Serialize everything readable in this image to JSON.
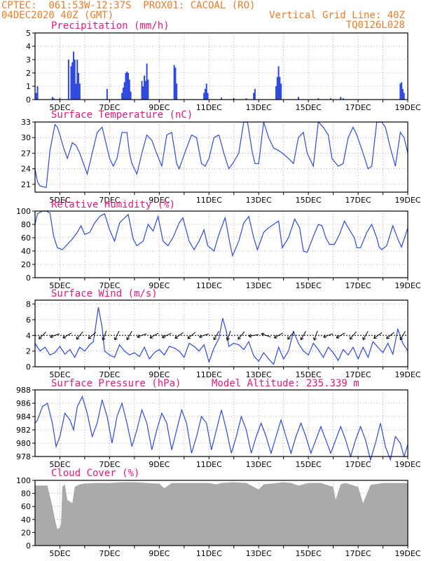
{
  "header": {
    "line1": "CPTEC:  061:53W-12:37S  PROX01: CACOAL (RO)",
    "line2": "04DEC2020 40Z (GMT)",
    "grid_note": "Vertical Grid Line: 40Z",
    "code": "TQ0126L028",
    "color": "#ee7b26"
  },
  "colors": {
    "title": "#e8177b",
    "series": "#2f49e0",
    "cloud": "#aaaaaa",
    "grid": "#9a9a9a"
  },
  "x_axis": {
    "labels": [
      "5DEC",
      "7DEC",
      "9DEC",
      "11DEC",
      "13DEC",
      "15DEC",
      "17DEC",
      "19DEC"
    ],
    "range_days": [
      4.0,
      19.0
    ]
  },
  "chart_data": [
    {
      "type": "bar",
      "title": "Precipitation (mm/h)",
      "ylim": [
        0,
        5
      ],
      "yticks": [
        0,
        1,
        2,
        3,
        4,
        5
      ],
      "bars": [
        [
          4.05,
          0.5
        ],
        [
          4.1,
          1.0
        ],
        [
          4.7,
          0.2
        ],
        [
          4.75,
          0.1
        ],
        [
          5.0,
          0.1
        ],
        [
          5.35,
          3.0
        ],
        [
          5.45,
          2.5
        ],
        [
          5.5,
          2.8
        ],
        [
          5.55,
          3.6
        ],
        [
          5.6,
          3.0
        ],
        [
          5.65,
          1.2
        ],
        [
          5.7,
          3.0
        ],
        [
          5.75,
          2.0
        ],
        [
          5.8,
          1.2
        ],
        [
          6.9,
          0.8
        ],
        [
          7.5,
          0.5
        ],
        [
          7.55,
          0.9
        ],
        [
          7.6,
          1.3
        ],
        [
          7.65,
          2.0
        ],
        [
          7.7,
          2.1
        ],
        [
          7.75,
          2.0
        ],
        [
          7.8,
          1.5
        ],
        [
          7.85,
          0.6
        ],
        [
          8.3,
          1.4
        ],
        [
          8.35,
          1.0
        ],
        [
          8.4,
          1.8
        ],
        [
          8.45,
          1.4
        ],
        [
          8.5,
          2.7
        ],
        [
          8.55,
          1.5
        ],
        [
          9.6,
          2.6
        ],
        [
          9.65,
          2.4
        ],
        [
          9.7,
          1.2
        ],
        [
          10.8,
          0.5
        ],
        [
          10.85,
          0.8
        ],
        [
          10.9,
          1.2
        ],
        [
          10.95,
          0.5
        ],
        [
          11.5,
          0.15
        ],
        [
          12.0,
          0.1
        ],
        [
          12.5,
          0.1
        ],
        [
          12.8,
          0.5
        ],
        [
          12.85,
          0.8
        ],
        [
          13.7,
          1.0
        ],
        [
          13.75,
          1.7
        ],
        [
          13.8,
          2.5
        ],
        [
          13.85,
          1.7
        ],
        [
          13.9,
          1.2
        ],
        [
          14.6,
          0.2
        ],
        [
          15.4,
          0.1
        ],
        [
          15.9,
          0.1
        ],
        [
          16.3,
          0.2
        ],
        [
          16.4,
          0.1
        ],
        [
          18.7,
          1.2
        ],
        [
          18.75,
          1.3
        ],
        [
          18.8,
          0.8
        ],
        [
          18.85,
          0.5
        ]
      ]
    },
    {
      "type": "line",
      "title": "Surface Temperature (nC)",
      "ylim": [
        19.5,
        33
      ],
      "yticks": [
        21,
        24,
        27,
        30,
        33
      ],
      "x": [
        4.0,
        4.1,
        4.2,
        4.35,
        4.45,
        4.6,
        4.8,
        4.9,
        5.0,
        5.15,
        5.3,
        5.4,
        5.5,
        5.65,
        5.8,
        5.95,
        6.1,
        6.3,
        6.5,
        6.7,
        6.85,
        7.0,
        7.15,
        7.3,
        7.5,
        7.7,
        7.8,
        7.9,
        8.1,
        8.3,
        8.5,
        8.7,
        8.85,
        9.1,
        9.3,
        9.5,
        9.7,
        9.8,
        9.95,
        10.1,
        10.3,
        10.5,
        10.7,
        10.85,
        11.0,
        11.2,
        11.4,
        11.6,
        11.8,
        11.95,
        12.2,
        12.4,
        12.55,
        12.75,
        12.85,
        13.0,
        13.2,
        13.4,
        13.6,
        13.8,
        13.95,
        14.2,
        14.4,
        14.6,
        14.8,
        14.95,
        15.2,
        15.4,
        15.6,
        15.8,
        15.95,
        16.2,
        16.4,
        16.6,
        16.8,
        16.95,
        17.2,
        17.4,
        17.55,
        17.75,
        17.95,
        18.1,
        18.3,
        18.5,
        18.7,
        18.85,
        19.0
      ],
      "y": [
        24,
        21.5,
        20.7,
        20.5,
        20.4,
        27.5,
        32.5,
        32,
        30.5,
        28,
        26,
        27.5,
        29,
        28.5,
        27,
        25,
        23,
        27,
        31,
        32,
        29,
        26,
        24.5,
        26,
        31,
        31,
        27,
        25,
        23,
        27,
        30.5,
        29.5,
        27.5,
        24.5,
        30.5,
        31,
        25,
        24,
        26,
        28,
        30.5,
        30,
        25,
        24.5,
        26,
        30,
        30.5,
        27,
        24,
        25,
        27,
        33,
        33,
        27,
        25,
        25,
        33,
        30,
        28,
        27.5,
        27,
        26,
        25,
        30,
        31,
        27,
        24.5,
        33,
        32,
        30.5,
        26,
        24.5,
        25,
        30,
        32,
        30.5,
        27,
        24,
        24.5,
        33,
        33,
        32,
        28,
        24.5,
        31,
        30,
        27
      ]
    },
    {
      "type": "line",
      "title": "Relative Humidity (%)",
      "ylim": [
        0,
        100
      ],
      "yticks": [
        0,
        20,
        40,
        60,
        80,
        100
      ],
      "x": [
        4.0,
        4.1,
        4.3,
        4.45,
        4.6,
        4.75,
        4.9,
        5.1,
        5.3,
        5.5,
        5.7,
        5.85,
        6.0,
        6.2,
        6.4,
        6.6,
        6.8,
        7.0,
        7.2,
        7.4,
        7.55,
        7.75,
        7.95,
        8.1,
        8.35,
        8.55,
        8.75,
        8.95,
        9.15,
        9.35,
        9.55,
        9.8,
        9.95,
        10.2,
        10.4,
        10.6,
        10.8,
        10.95,
        11.2,
        11.4,
        11.65,
        11.85,
        11.95,
        12.2,
        12.4,
        12.6,
        12.8,
        12.95,
        13.2,
        13.4,
        13.6,
        13.8,
        13.95,
        14.2,
        14.45,
        14.65,
        14.8,
        14.95,
        15.2,
        15.4,
        15.55,
        15.7,
        15.85,
        16.05,
        16.25,
        16.45,
        16.65,
        16.85,
        16.95,
        17.1,
        17.35,
        17.55,
        17.75,
        17.85,
        17.95,
        18.15,
        18.4,
        18.6,
        18.75,
        19.0
      ],
      "y": [
        80,
        96,
        100,
        100,
        97,
        62,
        45,
        42,
        50,
        58,
        68,
        78,
        65,
        68,
        82,
        92,
        96,
        72,
        55,
        82,
        88,
        95,
        58,
        48,
        55,
        80,
        70,
        92,
        55,
        48,
        60,
        82,
        90,
        55,
        42,
        55,
        72,
        48,
        40,
        65,
        90,
        50,
        33,
        55,
        82,
        92,
        60,
        42,
        68,
        75,
        80,
        85,
        45,
        60,
        88,
        75,
        40,
        38,
        62,
        80,
        78,
        60,
        50,
        50,
        65,
        85,
        72,
        60,
        45,
        45,
        68,
        80,
        60,
        46,
        42,
        48,
        78,
        58,
        46,
        75
      ]
    },
    {
      "type": "line",
      "title": "Surface Wind (m/s)",
      "ylim": [
        0,
        8.5
      ],
      "yticks": [
        0,
        2,
        4,
        6,
        8
      ],
      "x": [
        4.0,
        4.2,
        4.4,
        4.6,
        4.8,
        5.0,
        5.2,
        5.4,
        5.6,
        5.8,
        6.0,
        6.2,
        6.35,
        6.5,
        6.55,
        6.7,
        6.8,
        7.0,
        7.2,
        7.4,
        7.6,
        7.8,
        8.0,
        8.2,
        8.4,
        8.6,
        8.8,
        9.0,
        9.2,
        9.4,
        9.6,
        9.8,
        10.0,
        10.2,
        10.4,
        10.6,
        10.8,
        11.0,
        11.2,
        11.4,
        11.55,
        11.7,
        11.8,
        12.0,
        12.2,
        12.4,
        12.6,
        12.8,
        13.0,
        13.2,
        13.4,
        13.6,
        13.8,
        14.0,
        14.2,
        14.4,
        14.6,
        14.8,
        15.0,
        15.2,
        15.4,
        15.6,
        15.8,
        16.0,
        16.2,
        16.4,
        16.6,
        16.8,
        17.0,
        17.2,
        17.4,
        17.6,
        17.8,
        18.0,
        18.2,
        18.4,
        18.6,
        18.8,
        19.0
      ],
      "y": [
        3.0,
        2.0,
        2.5,
        1.5,
        1.8,
        2.6,
        1.6,
        2.2,
        1.2,
        2.5,
        2.0,
        2.8,
        3.2,
        6.5,
        7.6,
        5.0,
        2.0,
        1.5,
        1.2,
        2.8,
        2.0,
        1.5,
        1.8,
        1.3,
        2.5,
        1.0,
        1.8,
        2.2,
        1.5,
        2.6,
        2.4,
        2.0,
        1.2,
        3.0,
        2.6,
        2.0,
        2.8,
        0.6,
        2.4,
        3.6,
        6.2,
        4.5,
        2.6,
        3.0,
        2.8,
        2.2,
        3.2,
        1.4,
        0.7,
        1.8,
        1.0,
        0.3,
        2.5,
        1.0,
        2.0,
        4.5,
        3.0,
        2.0,
        1.5,
        3.0,
        2.2,
        1.2,
        2.5,
        1.8,
        0.8,
        2.2,
        1.5,
        2.5,
        1.0,
        2.5,
        1.2,
        3.2,
        2.5,
        1.8,
        3.0,
        1.6,
        4.8,
        3.0,
        2.0
      ],
      "vector_x": [
        4.3,
        4.8,
        5.3,
        5.8,
        6.3,
        6.8,
        7.3,
        7.8,
        8.3,
        8.8,
        9.3,
        9.8,
        10.3,
        10.8,
        11.3,
        11.8,
        12.3,
        12.8,
        13.3,
        13.8,
        14.3,
        14.8,
        15.3,
        15.8,
        16.3,
        16.8,
        17.3,
        17.8,
        18.3,
        18.8
      ],
      "vector_dir_deg": [
        225,
        200,
        210,
        230,
        220,
        250,
        245,
        240,
        200,
        210,
        205,
        215,
        220,
        200,
        240,
        250,
        230,
        190,
        160,
        210,
        230,
        240,
        250,
        200,
        210,
        230,
        240,
        215,
        220,
        240
      ]
    },
    {
      "type": "line",
      "title": "Surface Pressure (hPa)",
      "annotation": "Model Altitude: 235.339  m",
      "ylim": [
        978,
        988
      ],
      "yticks": [
        978,
        980,
        982,
        984,
        986,
        988
      ],
      "x": [
        4.0,
        4.1,
        4.3,
        4.5,
        4.7,
        4.85,
        5.0,
        5.2,
        5.4,
        5.55,
        5.7,
        5.9,
        6.1,
        6.3,
        6.5,
        6.7,
        6.9,
        7.1,
        7.3,
        7.5,
        7.7,
        7.9,
        8.1,
        8.3,
        8.5,
        8.7,
        8.9,
        9.1,
        9.3,
        9.5,
        9.7,
        9.9,
        10.1,
        10.3,
        10.5,
        10.7,
        10.9,
        11.1,
        11.3,
        11.5,
        11.7,
        11.9,
        12.1,
        12.3,
        12.5,
        12.7,
        12.9,
        13.1,
        13.3,
        13.5,
        13.7,
        13.9,
        14.1,
        14.3,
        14.5,
        14.7,
        14.9,
        15.1,
        15.3,
        15.5,
        15.7,
        15.9,
        16.1,
        16.3,
        16.5,
        16.7,
        16.9,
        17.1,
        17.3,
        17.5,
        17.7,
        17.9,
        18.1,
        18.3,
        18.5,
        18.7,
        18.85,
        19.0
      ],
      "y": [
        983,
        983.5,
        985.5,
        986,
        983,
        979.5,
        981,
        984.5,
        983.5,
        982,
        985.5,
        987,
        984.5,
        981,
        983,
        986.5,
        984,
        980,
        984,
        986,
        983,
        979.5,
        982,
        985,
        983,
        979,
        982,
        984.5,
        983,
        979,
        982,
        985,
        983,
        978.5,
        981,
        984,
        983,
        979,
        982,
        985,
        982,
        978.5,
        981,
        984,
        982,
        978.5,
        981,
        983,
        981,
        978.5,
        981,
        983.5,
        981,
        978.5,
        981,
        983,
        981,
        978.5,
        980.5,
        982.5,
        980.5,
        978.5,
        980.5,
        982.5,
        980.5,
        978,
        980.5,
        982.5,
        980.5,
        977.5,
        980,
        983,
        979.5,
        977.5,
        981,
        980,
        978,
        979.8
      ]
    },
    {
      "type": "area",
      "title": "Cloud Cover (%)",
      "ylim": [
        0,
        100
      ],
      "yticks": [
        0,
        20,
        40,
        60,
        80,
        100
      ],
      "x": [
        4.0,
        4.2,
        4.5,
        4.7,
        4.8,
        4.9,
        5.0,
        5.05,
        5.1,
        5.2,
        5.3,
        5.5,
        5.6,
        5.8,
        6.0,
        6.4,
        7.0,
        7.5,
        8.0,
        8.5,
        9.0,
        9.2,
        9.5,
        10.0,
        10.5,
        11.0,
        11.3,
        11.5,
        12.0,
        12.5,
        12.8,
        13.0,
        13.2,
        13.5,
        14.0,
        14.3,
        14.6,
        15.0,
        15.5,
        16.0,
        16.1,
        16.3,
        16.5,
        17.0,
        17.2,
        17.5,
        18.0,
        18.5,
        19.0
      ],
      "y": [
        92,
        92,
        92,
        60,
        40,
        25,
        28,
        35,
        90,
        94,
        70,
        65,
        90,
        94,
        95,
        96,
        96,
        97,
        97,
        96,
        95,
        88,
        96,
        96,
        96,
        96,
        94,
        96,
        97,
        96,
        90,
        86,
        94,
        95,
        97,
        96,
        92,
        96,
        96,
        90,
        70,
        94,
        96,
        90,
        65,
        93,
        96,
        96,
        96
      ]
    }
  ]
}
